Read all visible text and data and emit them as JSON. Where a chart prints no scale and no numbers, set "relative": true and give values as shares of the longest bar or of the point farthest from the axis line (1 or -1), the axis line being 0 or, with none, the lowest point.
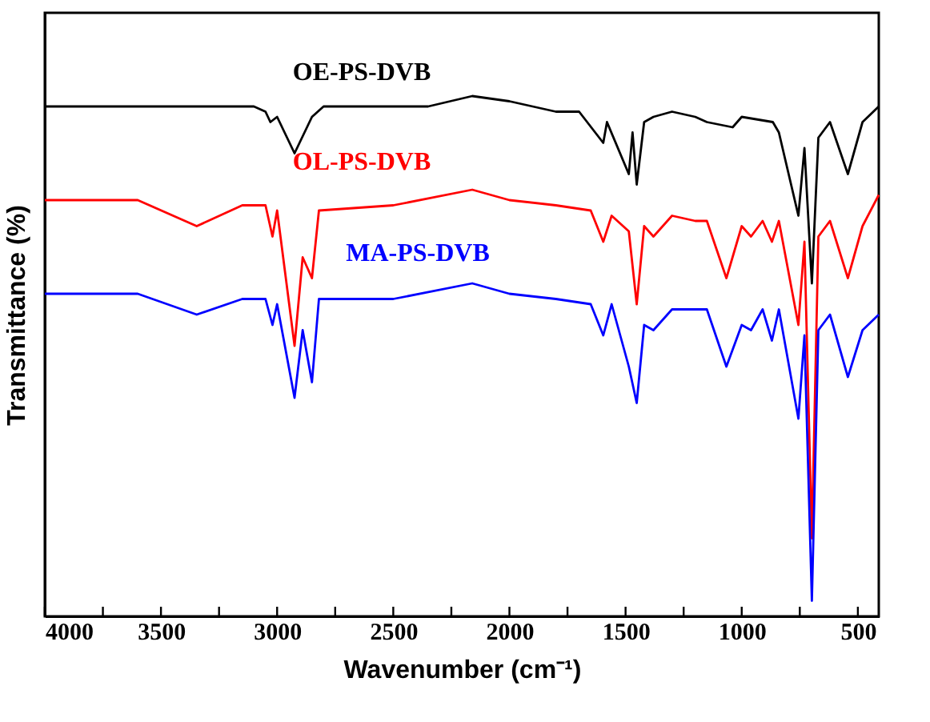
{
  "chart_data": {
    "type": "line",
    "relative": true,
    "xlabel": "Wavenumber (cm⁻¹)",
    "ylabel": "Transmittance (%)",
    "xlim": [
      4000,
      410
    ],
    "xticks": [
      4000,
      {
        "value": 3750,
        "label": null
      },
      3500,
      {
        "value": 3250,
        "label": null
      },
      3000,
      {
        "value": 2750,
        "label": null
      },
      2500,
      {
        "value": 2250,
        "label": null
      },
      2000,
      {
        "value": 1750,
        "label": null
      },
      1500,
      {
        "value": 1250,
        "label": null
      },
      1000,
      {
        "value": 750,
        "label": null
      },
      500
    ],
    "grid": false,
    "tick_labels": "x",
    "line_style": "solid",
    "marker": "none",
    "series": [
      {
        "name": "OE-PS-DVB",
        "color": "#000000",
        "x": [
          4000,
          3600,
          3100,
          3050,
          3029,
          3000,
          2925,
          2850,
          2800,
          2500,
          2350,
          2160,
          2000,
          1900,
          1800,
          1700,
          1596,
          1580,
          1486,
          1470,
          1452,
          1420,
          1380,
          1300,
          1200,
          1150,
          1039,
          1000,
          866,
          840,
          756,
          730,
          698,
          670,
          620,
          543,
          480,
          410
        ],
        "values": [
          0.98,
          0.98,
          0.98,
          0.97,
          0.95,
          0.96,
          0.89,
          0.96,
          0.98,
          0.98,
          0.98,
          1.0,
          0.99,
          0.98,
          0.97,
          0.97,
          0.91,
          0.95,
          0.85,
          0.93,
          0.83,
          0.95,
          0.96,
          0.97,
          0.96,
          0.95,
          0.94,
          0.96,
          0.95,
          0.93,
          0.77,
          0.9,
          0.64,
          0.92,
          0.95,
          0.85,
          0.95,
          0.98
        ]
      },
      {
        "name": "OL-PS-DVB",
        "color": "#ff0000",
        "x": [
          4000,
          3600,
          3346,
          3150,
          3050,
          3020,
          3000,
          2925,
          2890,
          2850,
          2820,
          2500,
          2160,
          2000,
          1800,
          1650,
          1596,
          1560,
          1486,
          1452,
          1420,
          1380,
          1300,
          1200,
          1150,
          1066,
          1000,
          960,
          910,
          870,
          840,
          756,
          730,
          698,
          670,
          620,
          543,
          480,
          410
        ],
        "values": [
          0.8,
          0.8,
          0.75,
          0.79,
          0.79,
          0.73,
          0.78,
          0.52,
          0.69,
          0.65,
          0.78,
          0.79,
          0.82,
          0.8,
          0.79,
          0.78,
          0.72,
          0.77,
          0.74,
          0.6,
          0.75,
          0.73,
          0.77,
          0.76,
          0.76,
          0.65,
          0.75,
          0.73,
          0.76,
          0.72,
          0.76,
          0.56,
          0.72,
          0.15,
          0.73,
          0.76,
          0.65,
          0.75,
          0.81
        ]
      },
      {
        "name": "MA-PS-DVB",
        "color": "#0000ff",
        "x": [
          4000,
          3600,
          3346,
          3150,
          3050,
          3020,
          3000,
          2925,
          2890,
          2850,
          2820,
          2500,
          2160,
          2000,
          1800,
          1650,
          1596,
          1560,
          1486,
          1452,
          1420,
          1380,
          1300,
          1200,
          1150,
          1066,
          1000,
          960,
          910,
          870,
          840,
          756,
          730,
          698,
          670,
          620,
          543,
          480,
          410
        ],
        "values": [
          0.62,
          0.62,
          0.58,
          0.61,
          0.61,
          0.56,
          0.6,
          0.42,
          0.55,
          0.45,
          0.61,
          0.61,
          0.64,
          0.62,
          0.61,
          0.6,
          0.54,
          0.6,
          0.48,
          0.41,
          0.56,
          0.55,
          0.59,
          0.59,
          0.59,
          0.48,
          0.56,
          0.55,
          0.59,
          0.53,
          0.59,
          0.38,
          0.54,
          0.03,
          0.55,
          0.58,
          0.46,
          0.55,
          0.58
        ]
      }
    ]
  }
}
